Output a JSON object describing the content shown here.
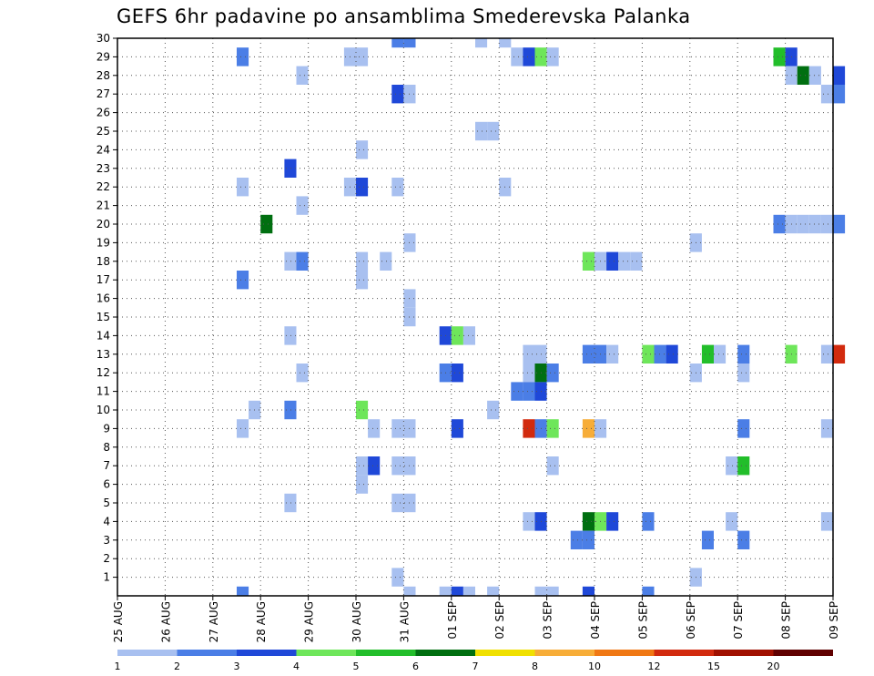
{
  "chart_data": {
    "type": "heatmap",
    "title": "GEFS 6hr padavine po ansamblima Smederevska Palanka",
    "y_ticks": [
      "1",
      "2",
      "3",
      "4",
      "5",
      "6",
      "7",
      "8",
      "9",
      "10",
      "11",
      "12",
      "13",
      "14",
      "15",
      "16",
      "17",
      "18",
      "19",
      "20",
      "21",
      "22",
      "23",
      "24",
      "25",
      "26",
      "27",
      "28",
      "29",
      "30"
    ],
    "x_ticks": [
      "25 AUG",
      "26 AUG",
      "27 AUG",
      "28 AUG",
      "29 AUG",
      "30 AUG",
      "31 AUG",
      "01 SEP",
      "02 SEP",
      "03 SEP",
      "04 SEP",
      "05 SEP",
      "06 SEP",
      "07 SEP",
      "08 SEP",
      "09 SEP"
    ],
    "grid": true,
    "legend": {
      "position": "bottom",
      "labels": [
        "1",
        "2",
        "3",
        "4",
        "5",
        "6",
        "7",
        "8",
        "10",
        "12",
        "15",
        "20"
      ],
      "colors": [
        "#a8c0f0",
        "#4b7ee6",
        "#1f48d8",
        "#6ee65a",
        "#22be2a",
        "#006f10",
        "#f0e000",
        "#f7ad38",
        "#f07814",
        "#d22a0e",
        "#a01000",
        "#600000"
      ]
    },
    "cells": [
      [
        2.5,
        29,
        2
      ],
      [
        2.5,
        22,
        1
      ],
      [
        2.5,
        17,
        2
      ],
      [
        2.5,
        9,
        1
      ],
      [
        2.5,
        0,
        2
      ],
      [
        2.75,
        10,
        1
      ],
      [
        3.0,
        20,
        6
      ],
      [
        3.5,
        23,
        3
      ],
      [
        3.5,
        18,
        1
      ],
      [
        3.5,
        14,
        1
      ],
      [
        3.5,
        10,
        2
      ],
      [
        3.5,
        5,
        1
      ],
      [
        3.75,
        28,
        1
      ],
      [
        3.75,
        21,
        1
      ],
      [
        3.75,
        18,
        2
      ],
      [
        3.75,
        12,
        1
      ],
      [
        4.75,
        22,
        1
      ],
      [
        4.75,
        29,
        1
      ],
      [
        5.0,
        29,
        1
      ],
      [
        5.0,
        24,
        1
      ],
      [
        5.0,
        22,
        3
      ],
      [
        5.0,
        18,
        1
      ],
      [
        5.0,
        17,
        1
      ],
      [
        5.0,
        10,
        4
      ],
      [
        5.0,
        7,
        1
      ],
      [
        5.0,
        6,
        1
      ],
      [
        5.25,
        9,
        1
      ],
      [
        5.25,
        7,
        3
      ],
      [
        5.5,
        18,
        1
      ],
      [
        5.75,
        30,
        2
      ],
      [
        5.75,
        27,
        3
      ],
      [
        5.75,
        22,
        1
      ],
      [
        5.75,
        9,
        1
      ],
      [
        5.75,
        7,
        1
      ],
      [
        5.75,
        5,
        1
      ],
      [
        5.75,
        1,
        1
      ],
      [
        6.0,
        30,
        2
      ],
      [
        6.0,
        27,
        1
      ],
      [
        6.0,
        19,
        1
      ],
      [
        6.0,
        16,
        1
      ],
      [
        6.0,
        15,
        1
      ],
      [
        6.0,
        9,
        1
      ],
      [
        6.0,
        7,
        1
      ],
      [
        6.0,
        5,
        1
      ],
      [
        6.0,
        0,
        1
      ],
      [
        6.75,
        14,
        3
      ],
      [
        6.75,
        12,
        2
      ],
      [
        6.75,
        0,
        1
      ],
      [
        7.0,
        14,
        4
      ],
      [
        7.0,
        12,
        3
      ],
      [
        7.0,
        9,
        3
      ],
      [
        7.0,
        0,
        3
      ],
      [
        7.25,
        14,
        1
      ],
      [
        7.25,
        0,
        1
      ],
      [
        7.5,
        30,
        1
      ],
      [
        7.5,
        25,
        1
      ],
      [
        7.75,
        25,
        1
      ],
      [
        7.75,
        10,
        1
      ],
      [
        7.75,
        0,
        1
      ],
      [
        8.0,
        30,
        1
      ],
      [
        8.0,
        22,
        1
      ],
      [
        8.25,
        29,
        1
      ],
      [
        8.25,
        11,
        2
      ],
      [
        8.5,
        29,
        3
      ],
      [
        8.5,
        13,
        1
      ],
      [
        8.5,
        12,
        1
      ],
      [
        8.5,
        11,
        2
      ],
      [
        8.5,
        9,
        10
      ],
      [
        8.5,
        4,
        1
      ],
      [
        8.75,
        29,
        4
      ],
      [
        8.75,
        13,
        1
      ],
      [
        8.75,
        12,
        6
      ],
      [
        8.75,
        11,
        3
      ],
      [
        8.75,
        9,
        2
      ],
      [
        8.75,
        4,
        3
      ],
      [
        8.75,
        0,
        1
      ],
      [
        9.0,
        29,
        1
      ],
      [
        9.0,
        12,
        2
      ],
      [
        9.0,
        9,
        4
      ],
      [
        9.0,
        7,
        1
      ],
      [
        9.0,
        0,
        1
      ],
      [
        9.5,
        3,
        2
      ],
      [
        9.75,
        18,
        4
      ],
      [
        9.75,
        13,
        2
      ],
      [
        9.75,
        9,
        8
      ],
      [
        9.75,
        4,
        6
      ],
      [
        9.75,
        3,
        2
      ],
      [
        9.75,
        0,
        3
      ],
      [
        10.0,
        18,
        1
      ],
      [
        10.0,
        13,
        2
      ],
      [
        10.0,
        9,
        1
      ],
      [
        10.0,
        4,
        4
      ],
      [
        10.25,
        18,
        3
      ],
      [
        10.25,
        13,
        1
      ],
      [
        10.25,
        4,
        3
      ],
      [
        10.5,
        18,
        1
      ],
      [
        10.75,
        18,
        1
      ],
      [
        11.0,
        13,
        4
      ],
      [
        11.0,
        4,
        2
      ],
      [
        11.0,
        0,
        2
      ],
      [
        11.25,
        13,
        2
      ],
      [
        11.5,
        13,
        3
      ],
      [
        12.0,
        19,
        1
      ],
      [
        12.0,
        12,
        1
      ],
      [
        12.0,
        1,
        1
      ],
      [
        12.25,
        13,
        5
      ],
      [
        12.25,
        3,
        2
      ],
      [
        12.5,
        13,
        1
      ],
      [
        12.75,
        4,
        1
      ],
      [
        12.75,
        7,
        1
      ],
      [
        13.0,
        13,
        2
      ],
      [
        13.0,
        12,
        1
      ],
      [
        13.0,
        9,
        2
      ],
      [
        13.0,
        7,
        5
      ],
      [
        13.0,
        3,
        2
      ],
      [
        13.75,
        29,
        5
      ],
      [
        13.75,
        20,
        2
      ],
      [
        14.0,
        29,
        3
      ],
      [
        14.0,
        28,
        1
      ],
      [
        14.0,
        20,
        1
      ],
      [
        14.0,
        13,
        4
      ],
      [
        14.25,
        28,
        6
      ],
      [
        14.25,
        20,
        1
      ],
      [
        14.5,
        28,
        1
      ],
      [
        14.5,
        20,
        1
      ],
      [
        14.75,
        27,
        1
      ],
      [
        14.75,
        20,
        1
      ],
      [
        14.75,
        13,
        1
      ],
      [
        14.75,
        9,
        1
      ],
      [
        14.75,
        4,
        1
      ],
      [
        15.0,
        28,
        3
      ],
      [
        15.0,
        27,
        2
      ],
      [
        15.0,
        20,
        2
      ],
      [
        15.0,
        13,
        10
      ]
    ]
  }
}
